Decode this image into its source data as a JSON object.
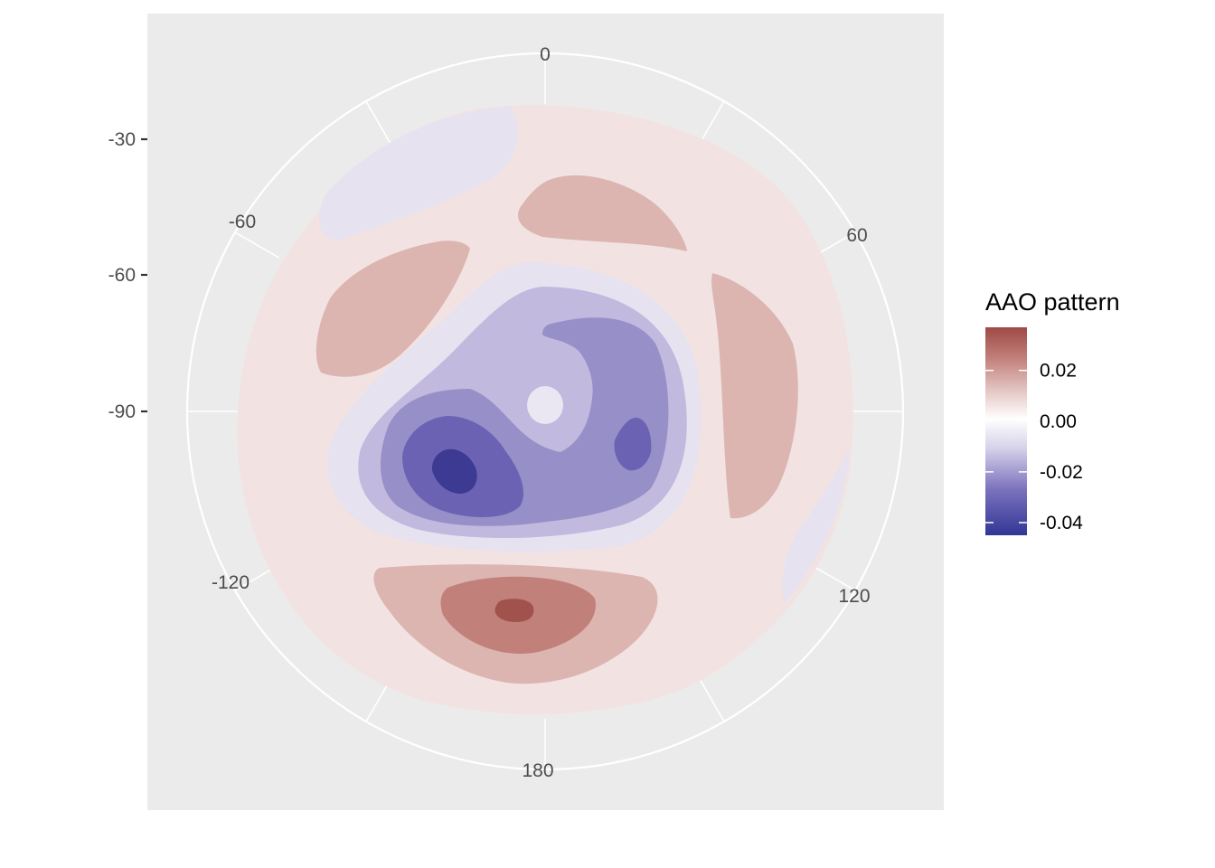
{
  "chart_data": {
    "type": "contour",
    "projection": "polar-stereographic (south pole)",
    "title": "",
    "xlabel": "",
    "ylabel": "",
    "longitude_ticks": [
      "0",
      "60",
      "120",
      "180",
      "-120",
      "-60"
    ],
    "latitude_ticks": [
      "-30",
      "-60",
      "-90"
    ],
    "legend": {
      "title": "AAO pattern",
      "labels": [
        "0.02",
        "0.00",
        "-0.02",
        "-0.04"
      ],
      "values": [
        0.02,
        0.0,
        -0.02,
        -0.04
      ],
      "range": [
        -0.045,
        0.037
      ],
      "colors": {
        "low": "#313695",
        "mid": "#ffffff",
        "high": "#9e4a45"
      },
      "placement": "right"
    },
    "contour_levels": [
      -0.045,
      -0.035,
      -0.025,
      -0.015,
      -0.005,
      0.005,
      0.015,
      0.025,
      0.035
    ],
    "panel_background": "#ebebeb",
    "grid_color": "#ffffff"
  },
  "level_colors": {
    "n5": "#3c3a93",
    "n4": "#6b62b3",
    "n3": "#978fc7",
    "n2": "#c1b9de",
    "n1": "#e6e2f0",
    "p1": "#f2e3e2",
    "p2": "#dcb5b1",
    "p3": "#c2807b",
    "p4": "#a1524d"
  }
}
